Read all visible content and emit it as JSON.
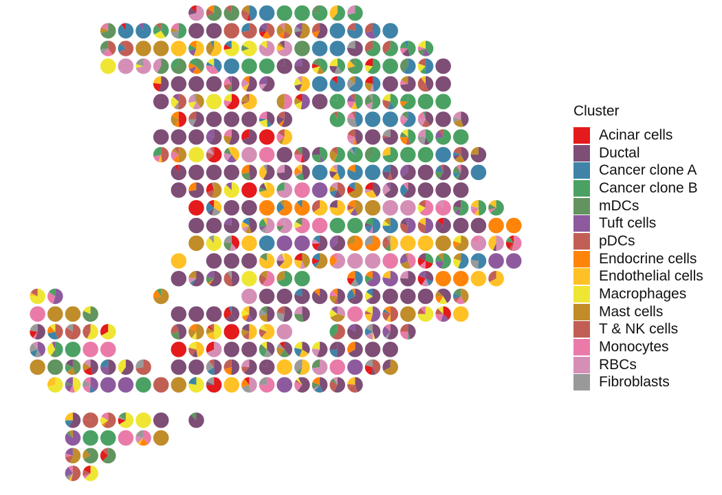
{
  "chart_data": {
    "type": "pie-scatter",
    "legend_title": "Cluster",
    "legend_position": "right",
    "grid": false,
    "axes": "none",
    "clusters": [
      {
        "name": "Acinar cells",
        "color": "#E41A1C"
      },
      {
        "name": "Ductal",
        "color": "#7E4E76"
      },
      {
        "name": "Cancer clone A",
        "color": "#3F84A8"
      },
      {
        "name": "Cancer clone B",
        "color": "#4BA163"
      },
      {
        "name": "mDCs",
        "color": "#61945F"
      },
      {
        "name": "Tuft cells",
        "color": "#8E5A9E"
      },
      {
        "name": "pDCs",
        "color": "#C25F55"
      },
      {
        "name": "Endocrine cells",
        "color": "#FF850A"
      },
      {
        "name": "Endothelial cells",
        "color": "#FFC125"
      },
      {
        "name": "Macrophages",
        "color": "#EFE634"
      },
      {
        "name": "Mast cells",
        "color": "#C08D2A"
      },
      {
        "name": "T & NK cells",
        "color": "#C25F55"
      },
      {
        "name": "Monocytes",
        "color": "#EA7BA9"
      },
      {
        "name": "RBCs",
        "color": "#D58FB6"
      },
      {
        "name": "Fibroblasts",
        "color": "#999999"
      }
    ],
    "spots": [
      {
        "row": 0,
        "col_start": 10,
        "col_end": 19
      },
      {
        "row": 1,
        "col_start": 5,
        "col_end": 21
      },
      {
        "row": 2,
        "col_start": 5,
        "col_end": 23
      },
      {
        "row": 3,
        "col_start": 5,
        "col_end": 24
      },
      {
        "row": 4,
        "col_start": 8,
        "col_end": 24
      },
      {
        "row": 5,
        "col_start": 8,
        "col_end": 24
      },
      {
        "row": 6,
        "col_start": 9,
        "col_end": 25
      },
      {
        "row": 7,
        "col_start": 8,
        "col_end": 25
      },
      {
        "row": 8,
        "col_start": 8,
        "col_end": 26
      },
      {
        "row": 9,
        "col_start": 9,
        "col_end": 26
      },
      {
        "row": 10,
        "col_start": 9,
        "col_end": 25
      },
      {
        "row": 11,
        "col_start": 10,
        "col_end": 27
      },
      {
        "row": 12,
        "col_start": 10,
        "col_end": 28
      },
      {
        "row": 13,
        "col_start": 10,
        "col_end": 28
      },
      {
        "row": 14,
        "col_start": 9,
        "col_end": 28
      },
      {
        "row": 15,
        "col_start": 9,
        "col_end": 27
      },
      {
        "row": 16,
        "col_start": 1,
        "col_end": 2
      },
      {
        "row": 16,
        "col_start": 8,
        "col_end": 8
      },
      {
        "row": 16,
        "col_start": 13,
        "col_end": 25
      },
      {
        "row": 17,
        "col_start": 1,
        "col_end": 4
      },
      {
        "row": 17,
        "col_start": 9,
        "col_end": 25
      },
      {
        "row": 18,
        "col_start": 1,
        "col_end": 5
      },
      {
        "row": 18,
        "col_start": 9,
        "col_end": 22
      },
      {
        "row": 19,
        "col_start": 1,
        "col_end": 5
      },
      {
        "row": 19,
        "col_start": 9,
        "col_end": 21
      },
      {
        "row": 20,
        "col_start": 1,
        "col_end": 7
      },
      {
        "row": 20,
        "col_start": 9,
        "col_end": 21
      },
      {
        "row": 21,
        "col_start": 2,
        "col_end": 19
      },
      {
        "row": 23,
        "col_start": 3,
        "col_end": 8
      },
      {
        "row": 23,
        "col_start": 10,
        "col_end": 10
      },
      {
        "row": 24,
        "col_start": 3,
        "col_end": 8
      },
      {
        "row": 25,
        "col_start": 3,
        "col_end": 5
      },
      {
        "row": 26,
        "col_start": 3,
        "col_end": 4
      }
    ],
    "holes": [
      {
        "row": 4,
        "col": 15
      },
      {
        "row": 5,
        "col": 14
      },
      {
        "row": 6,
        "col": 16
      },
      {
        "row": 6,
        "col": 17
      },
      {
        "row": 7,
        "col": 16
      },
      {
        "row": 7,
        "col": 17
      },
      {
        "row": 7,
        "col": 18
      },
      {
        "row": 14,
        "col": 10
      },
      {
        "row": 15,
        "col": 17
      },
      {
        "row": 15,
        "col": 18
      },
      {
        "row": 17,
        "col": 17
      },
      {
        "row": 18,
        "col": 16
      },
      {
        "row": 18,
        "col": 17
      }
    ]
  }
}
